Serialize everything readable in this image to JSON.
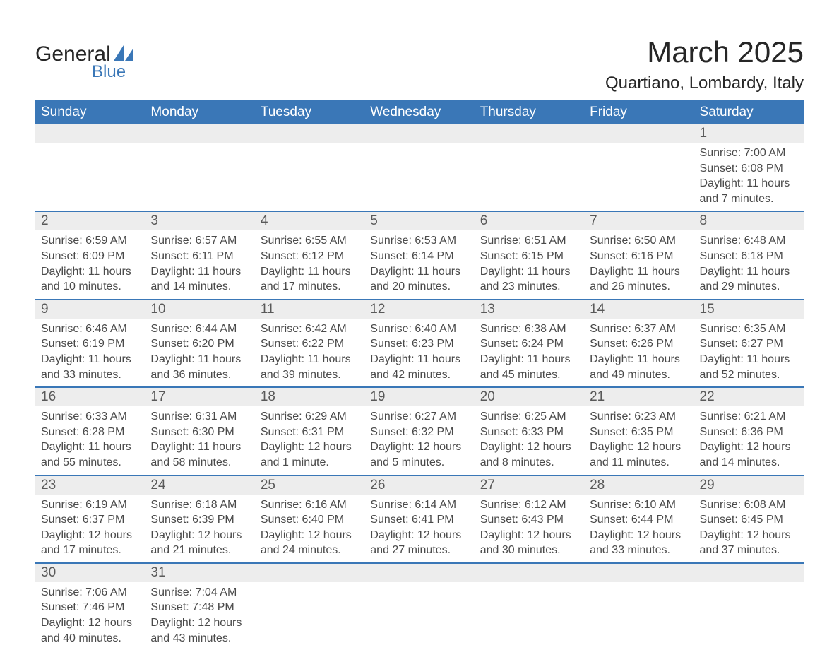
{
  "logo": {
    "general": "General",
    "blue": "Blue"
  },
  "title": "March 2025",
  "location": "Quartiano, Lombardy, Italy",
  "weekdays": [
    "Sunday",
    "Monday",
    "Tuesday",
    "Wednesday",
    "Thursday",
    "Friday",
    "Saturday"
  ],
  "colors": {
    "header_bg": "#3a77b7",
    "header_text": "#ffffff",
    "row_divider": "#3a77b7",
    "daynum_bg": "#ededed",
    "text": "#4a4a4a",
    "title_text": "#262626",
    "logo_blue": "#3a77b7"
  },
  "typography": {
    "title_fontsize": 42,
    "location_fontsize": 24,
    "weekday_fontsize": 19,
    "daynum_fontsize": 19,
    "body_fontsize": 16
  },
  "weeks": [
    [
      {
        "blank": true
      },
      {
        "blank": true
      },
      {
        "blank": true
      },
      {
        "blank": true
      },
      {
        "blank": true
      },
      {
        "blank": true
      },
      {
        "day": "1",
        "sunrise": "Sunrise: 7:00 AM",
        "sunset": "Sunset: 6:08 PM",
        "daylight": "Daylight: 11 hours and 7 minutes."
      }
    ],
    [
      {
        "day": "2",
        "sunrise": "Sunrise: 6:59 AM",
        "sunset": "Sunset: 6:09 PM",
        "daylight": "Daylight: 11 hours and 10 minutes."
      },
      {
        "day": "3",
        "sunrise": "Sunrise: 6:57 AM",
        "sunset": "Sunset: 6:11 PM",
        "daylight": "Daylight: 11 hours and 14 minutes."
      },
      {
        "day": "4",
        "sunrise": "Sunrise: 6:55 AM",
        "sunset": "Sunset: 6:12 PM",
        "daylight": "Daylight: 11 hours and 17 minutes."
      },
      {
        "day": "5",
        "sunrise": "Sunrise: 6:53 AM",
        "sunset": "Sunset: 6:14 PM",
        "daylight": "Daylight: 11 hours and 20 minutes."
      },
      {
        "day": "6",
        "sunrise": "Sunrise: 6:51 AM",
        "sunset": "Sunset: 6:15 PM",
        "daylight": "Daylight: 11 hours and 23 minutes."
      },
      {
        "day": "7",
        "sunrise": "Sunrise: 6:50 AM",
        "sunset": "Sunset: 6:16 PM",
        "daylight": "Daylight: 11 hours and 26 minutes."
      },
      {
        "day": "8",
        "sunrise": "Sunrise: 6:48 AM",
        "sunset": "Sunset: 6:18 PM",
        "daylight": "Daylight: 11 hours and 29 minutes."
      }
    ],
    [
      {
        "day": "9",
        "sunrise": "Sunrise: 6:46 AM",
        "sunset": "Sunset: 6:19 PM",
        "daylight": "Daylight: 11 hours and 33 minutes."
      },
      {
        "day": "10",
        "sunrise": "Sunrise: 6:44 AM",
        "sunset": "Sunset: 6:20 PM",
        "daylight": "Daylight: 11 hours and 36 minutes."
      },
      {
        "day": "11",
        "sunrise": "Sunrise: 6:42 AM",
        "sunset": "Sunset: 6:22 PM",
        "daylight": "Daylight: 11 hours and 39 minutes."
      },
      {
        "day": "12",
        "sunrise": "Sunrise: 6:40 AM",
        "sunset": "Sunset: 6:23 PM",
        "daylight": "Daylight: 11 hours and 42 minutes."
      },
      {
        "day": "13",
        "sunrise": "Sunrise: 6:38 AM",
        "sunset": "Sunset: 6:24 PM",
        "daylight": "Daylight: 11 hours and 45 minutes."
      },
      {
        "day": "14",
        "sunrise": "Sunrise: 6:37 AM",
        "sunset": "Sunset: 6:26 PM",
        "daylight": "Daylight: 11 hours and 49 minutes."
      },
      {
        "day": "15",
        "sunrise": "Sunrise: 6:35 AM",
        "sunset": "Sunset: 6:27 PM",
        "daylight": "Daylight: 11 hours and 52 minutes."
      }
    ],
    [
      {
        "day": "16",
        "sunrise": "Sunrise: 6:33 AM",
        "sunset": "Sunset: 6:28 PM",
        "daylight": "Daylight: 11 hours and 55 minutes."
      },
      {
        "day": "17",
        "sunrise": "Sunrise: 6:31 AM",
        "sunset": "Sunset: 6:30 PM",
        "daylight": "Daylight: 11 hours and 58 minutes."
      },
      {
        "day": "18",
        "sunrise": "Sunrise: 6:29 AM",
        "sunset": "Sunset: 6:31 PM",
        "daylight": "Daylight: 12 hours and 1 minute."
      },
      {
        "day": "19",
        "sunrise": "Sunrise: 6:27 AM",
        "sunset": "Sunset: 6:32 PM",
        "daylight": "Daylight: 12 hours and 5 minutes."
      },
      {
        "day": "20",
        "sunrise": "Sunrise: 6:25 AM",
        "sunset": "Sunset: 6:33 PM",
        "daylight": "Daylight: 12 hours and 8 minutes."
      },
      {
        "day": "21",
        "sunrise": "Sunrise: 6:23 AM",
        "sunset": "Sunset: 6:35 PM",
        "daylight": "Daylight: 12 hours and 11 minutes."
      },
      {
        "day": "22",
        "sunrise": "Sunrise: 6:21 AM",
        "sunset": "Sunset: 6:36 PM",
        "daylight": "Daylight: 12 hours and 14 minutes."
      }
    ],
    [
      {
        "day": "23",
        "sunrise": "Sunrise: 6:19 AM",
        "sunset": "Sunset: 6:37 PM",
        "daylight": "Daylight: 12 hours and 17 minutes."
      },
      {
        "day": "24",
        "sunrise": "Sunrise: 6:18 AM",
        "sunset": "Sunset: 6:39 PM",
        "daylight": "Daylight: 12 hours and 21 minutes."
      },
      {
        "day": "25",
        "sunrise": "Sunrise: 6:16 AM",
        "sunset": "Sunset: 6:40 PM",
        "daylight": "Daylight: 12 hours and 24 minutes."
      },
      {
        "day": "26",
        "sunrise": "Sunrise: 6:14 AM",
        "sunset": "Sunset: 6:41 PM",
        "daylight": "Daylight: 12 hours and 27 minutes."
      },
      {
        "day": "27",
        "sunrise": "Sunrise: 6:12 AM",
        "sunset": "Sunset: 6:43 PM",
        "daylight": "Daylight: 12 hours and 30 minutes."
      },
      {
        "day": "28",
        "sunrise": "Sunrise: 6:10 AM",
        "sunset": "Sunset: 6:44 PM",
        "daylight": "Daylight: 12 hours and 33 minutes."
      },
      {
        "day": "29",
        "sunrise": "Sunrise: 6:08 AM",
        "sunset": "Sunset: 6:45 PM",
        "daylight": "Daylight: 12 hours and 37 minutes."
      }
    ],
    [
      {
        "day": "30",
        "sunrise": "Sunrise: 7:06 AM",
        "sunset": "Sunset: 7:46 PM",
        "daylight": "Daylight: 12 hours and 40 minutes."
      },
      {
        "day": "31",
        "sunrise": "Sunrise: 7:04 AM",
        "sunset": "Sunset: 7:48 PM",
        "daylight": "Daylight: 12 hours and 43 minutes."
      },
      {
        "blank": true
      },
      {
        "blank": true
      },
      {
        "blank": true
      },
      {
        "blank": true
      },
      {
        "blank": true
      }
    ]
  ]
}
